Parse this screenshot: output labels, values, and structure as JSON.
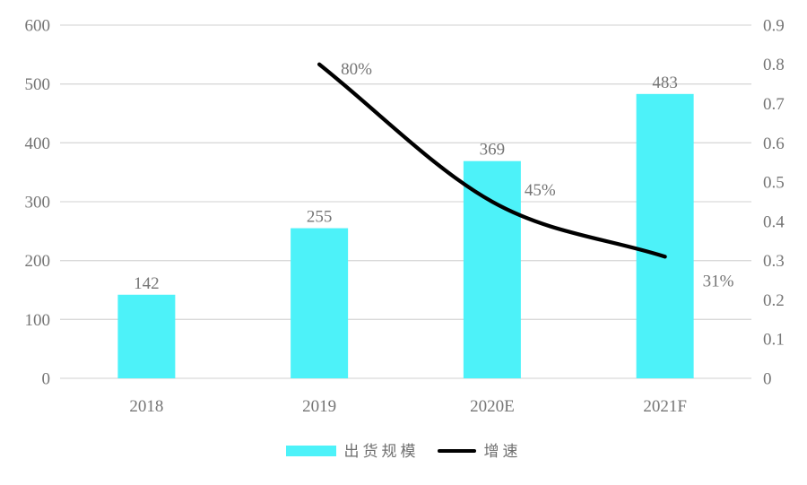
{
  "chart_data": {
    "type": "bar",
    "combo": "bar+line",
    "title": "",
    "xlabel": "",
    "ylabel": "",
    "categories": [
      "2018",
      "2019",
      "2020E",
      "2021F"
    ],
    "series": [
      {
        "name": "出货规模",
        "type": "bar",
        "axis": "left",
        "color": "#4DF2F9",
        "values": [
          142,
          255,
          369,
          483
        ],
        "data_labels": [
          "142",
          "255",
          "369",
          "483"
        ]
      },
      {
        "name": "增速",
        "type": "line",
        "axis": "right",
        "color": "#000000",
        "values": [
          null,
          0.8,
          0.45,
          0.31
        ],
        "data_labels": [
          null,
          "80%",
          "45%",
          "31%"
        ]
      }
    ],
    "left_axis": {
      "min": 0,
      "max": 600,
      "tick_labels": [
        "0",
        "100",
        "200",
        "300",
        "400",
        "500",
        "600"
      ]
    },
    "right_axis": {
      "min": 0,
      "max": 0.9,
      "tick_labels": [
        "0",
        "0.1",
        "0.2",
        "0.3",
        "0.4",
        "0.5",
        "0.6",
        "0.7",
        "0.8",
        "0.9"
      ]
    },
    "grid": true,
    "legend_position": "bottom",
    "colors": {
      "bar": "#4DF2F9",
      "line": "#000000",
      "gridline": "#D9D9D9",
      "text": "#757575",
      "background": "#FFFFFF"
    }
  },
  "legend": {
    "items": [
      {
        "label": "出货规模",
        "swatch": "bar",
        "color": "#4DF2F9"
      },
      {
        "label": "增速",
        "swatch": "line",
        "color": "#000000"
      }
    ]
  }
}
